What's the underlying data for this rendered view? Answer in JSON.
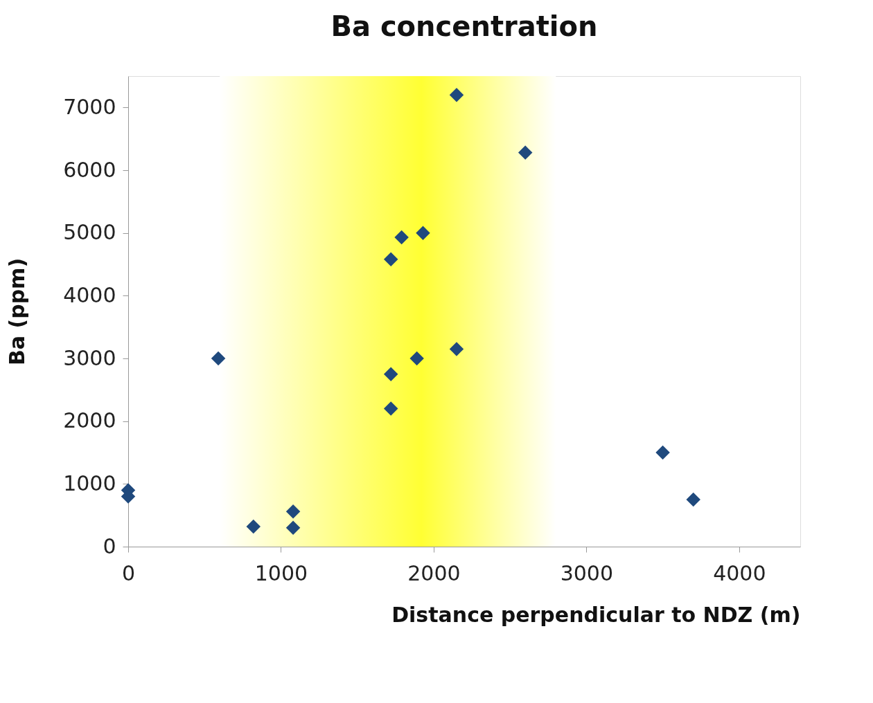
{
  "chart_data": {
    "type": "scatter",
    "title": "Ba concentration",
    "xlabel": "Distance perpendicular to NDZ (m)",
    "ylabel": "Ba (ppm)",
    "x": [
      0,
      0,
      590,
      820,
      1080,
      1080,
      1720,
      1720,
      1720,
      1790,
      1930,
      1890,
      2150,
      2150,
      2600,
      3500,
      3700
    ],
    "series": [
      {
        "color": "#1f497d",
        "values": [
          900,
          800,
          3000,
          320,
          560,
          300,
          2200,
          2750,
          4580,
          4930,
          5000,
          3000,
          3150,
          7200,
          6280,
          1500,
          750
        ]
      }
    ],
    "xlim": [
      0,
      4400
    ],
    "ylim": [
      0,
      7500
    ],
    "xticks": [
      0,
      1000,
      2000,
      3000,
      4000
    ],
    "yticks": [
      0,
      1000,
      2000,
      3000,
      4000,
      5000,
      6000,
      7000
    ],
    "bands": [
      {
        "axis": "x",
        "from": 600,
        "to": 2800,
        "color": "#ffff33"
      }
    ],
    "grid": false,
    "marker": "diamond"
  }
}
